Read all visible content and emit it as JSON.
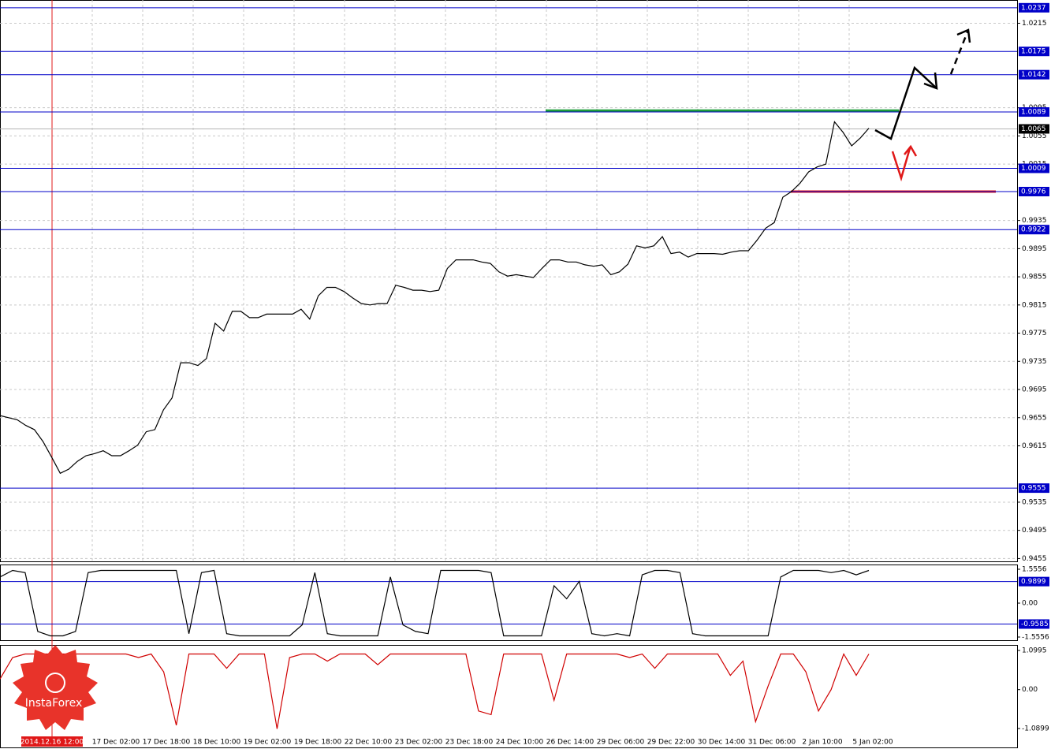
{
  "chart_data": [
    {
      "type": "line",
      "color": "#000000",
      "values": [
        0.9658,
        0.9655,
        0.9652,
        0.9644,
        0.9638,
        0.9621,
        0.9599,
        0.9576,
        0.9582,
        0.9593,
        0.9601,
        0.9604,
        0.9608,
        0.9601,
        0.9601,
        0.9608,
        0.9616,
        0.9635,
        0.9638,
        0.9666,
        0.9683,
        0.9733,
        0.9733,
        0.9729,
        0.9739,
        0.9789,
        0.9778,
        0.9806,
        0.9806,
        0.9797,
        0.9797,
        0.9802,
        0.9802,
        0.9802,
        0.9802,
        0.9809,
        0.9795,
        0.9828,
        0.984,
        0.984,
        0.9834,
        0.9825,
        0.9817,
        0.9815,
        0.9817,
        0.9817,
        0.9843,
        0.984,
        0.9836,
        0.9836,
        0.9834,
        0.9836,
        0.9867,
        0.9879,
        0.9879,
        0.9879,
        0.9876,
        0.9874,
        0.9862,
        0.9856,
        0.9858,
        0.9856,
        0.9854,
        0.9867,
        0.9879,
        0.9879,
        0.9876,
        0.9876,
        0.9872,
        0.987,
        0.9872,
        0.9858,
        0.9862,
        0.9873,
        0.9899,
        0.9896,
        0.9899,
        0.9912,
        0.9888,
        0.989,
        0.9883,
        0.9888,
        0.9888,
        0.9888,
        0.9887,
        0.989,
        0.9892,
        0.9892,
        0.9907,
        0.9924,
        0.9932,
        0.9968,
        0.9976,
        0.9988,
        1.0004,
        1.0011,
        1.0015,
        1.0075,
        1.006,
        1.0041,
        1.0052,
        1.0066
      ],
      "ylim": [
        0.9451,
        1.0248
      ],
      "yticks": [
        0.9455,
        0.9495,
        0.9535,
        0.9615,
        0.9655,
        0.9695,
        0.9735,
        0.9775,
        0.9815,
        0.9855,
        0.9895,
        0.9935,
        1.0015,
        1.0055,
        1.0095,
        1.0215
      ],
      "grid": true,
      "levels": [
        1.0237,
        1.0175,
        1.0142,
        1.0089,
        1.0009,
        0.9976,
        0.9922,
        0.9555
      ],
      "level_color": "#0000c8",
      "current_price": 1.0065,
      "drawn_lines": [
        {
          "value": 1.0091,
          "color": "#1f9e3a"
        },
        {
          "value": 0.9976,
          "color": "#e01818"
        }
      ],
      "x_labels": [
        "17 Dec 02:00",
        "17 Dec 18:00",
        "18 Dec 10:00",
        "19 Dec 02:00",
        "19 Dec 18:00",
        "22 Dec 10:00",
        "23 Dec 02:00",
        "23 Dec 18:00",
        "24 Dec 10:00",
        "26 Dec 14:00",
        "29 Dec 06:00",
        "29 Dec 22:00",
        "30 Dec 14:00",
        "31 Dec 06:00",
        "2 Jan 10:00",
        "5 Jan 02:00"
      ],
      "cursor_label": "2014.12.16 12:00"
    },
    {
      "type": "line",
      "color": "#000000",
      "values": [
        1.2,
        1.5,
        1.4,
        -1.3,
        -1.5,
        -1.5,
        -1.3,
        1.4,
        1.5,
        1.5,
        1.5,
        1.5,
        1.5,
        1.5,
        1.5,
        -1.4,
        1.4,
        1.5,
        -1.4,
        -1.5,
        -1.5,
        -1.5,
        -1.5,
        -1.5,
        -1.0,
        1.4,
        -1.4,
        -1.5,
        -1.5,
        -1.5,
        -1.5,
        1.2,
        -1.0,
        -1.3,
        -1.4,
        1.5,
        1.5,
        1.5,
        1.5,
        1.4,
        -1.5,
        -1.5,
        -1.5,
        -1.5,
        0.8,
        0.2,
        1.0,
        -1.4,
        -1.5,
        -1.4,
        -1.5,
        1.3,
        1.5,
        1.5,
        1.4,
        -1.4,
        -1.5,
        -1.5,
        -1.5,
        -1.5,
        -1.5,
        -1.5,
        1.2,
        1.5,
        1.5,
        1.5,
        1.4,
        1.5,
        1.3,
        1.5
      ],
      "ylim": [
        -1.7003,
        1.7727
      ],
      "yticks": [
        1.5556,
        {
          "value": 0,
          "label": "0.00"
        },
        -1.5556
      ],
      "levels": [
        0.9899,
        -0.9585
      ],
      "level_color": "#0000c8"
    },
    {
      "type": "line",
      "color": "#d00000",
      "values": [
        0.3,
        0.9,
        1.0,
        1.0,
        1.0,
        1.0,
        1.0,
        1.0,
        1.0,
        1.0,
        1.0,
        0.9,
        1.0,
        0.5,
        -1.0,
        1.0,
        1.0,
        1.0,
        0.6,
        1.0,
        1.0,
        1.0,
        -1.1,
        0.9,
        1.0,
        1.0,
        0.8,
        1.0,
        1.0,
        1.0,
        0.7,
        1.0,
        1.0,
        1.0,
        1.0,
        1.0,
        1.0,
        1.0,
        -0.6,
        -0.7,
        1.0,
        1.0,
        1.0,
        1.0,
        -0.3,
        1.0,
        1.0,
        1.0,
        1.0,
        1.0,
        0.9,
        1.0,
        0.6,
        1.0,
        1.0,
        1.0,
        1.0,
        1.0,
        0.4,
        0.8,
        -0.9,
        0.1,
        1.0,
        1.0,
        0.5,
        -0.6,
        0.0,
        1.0,
        0.4,
        1.0
      ],
      "ylim": [
        -1.6209,
        1.2544
      ],
      "yticks": [
        1.0995,
        {
          "value": 0,
          "label": "0.00"
        },
        -1.0899
      ]
    }
  ],
  "watermark": "InstaForex"
}
